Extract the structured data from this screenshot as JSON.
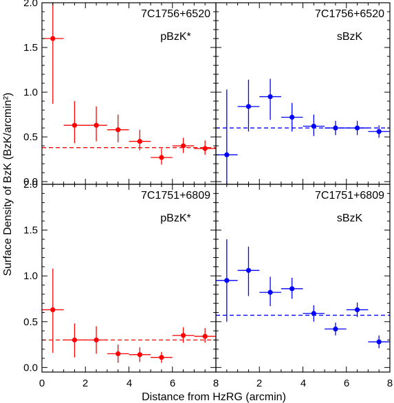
{
  "chart_data": {
    "type": "scatter",
    "xlabel": "Distance from HzRG (arcmin)",
    "ylabel": "Surface Density of BzK (BzK/arcmin²)",
    "xlim": [
      0,
      8
    ],
    "ylim": [
      -0.05,
      2.0
    ],
    "x_ticks": [
      0,
      2,
      4,
      6,
      8
    ],
    "y_ticks": [
      0.0,
      0.5,
      1.0,
      1.5,
      2.0
    ],
    "panels": [
      {
        "field": "7C1756+6520",
        "sample": "pBzK*",
        "color": "#ff0000",
        "ylim": [
          -0.03,
          2.0
        ],
        "reference_level": 0.38,
        "points": [
          {
            "x": 0.5,
            "y": 1.6,
            "xerr": 0.5,
            "yerr_low": 0.73,
            "yerr_high": 0.55
          },
          {
            "x": 1.5,
            "y": 0.63,
            "xerr": 0.5,
            "yerr_low": 0.2,
            "yerr_high": 0.27
          },
          {
            "x": 2.5,
            "y": 0.63,
            "xerr": 0.5,
            "yerr_low": 0.18,
            "yerr_high": 0.21
          },
          {
            "x": 3.5,
            "y": 0.58,
            "xerr": 0.5,
            "yerr_low": 0.14,
            "yerr_high": 0.17
          },
          {
            "x": 4.5,
            "y": 0.45,
            "xerr": 0.5,
            "yerr_low": 0.1,
            "yerr_high": 0.13
          },
          {
            "x": 5.5,
            "y": 0.27,
            "xerr": 0.5,
            "yerr_low": 0.08,
            "yerr_high": 0.1
          },
          {
            "x": 6.5,
            "y": 0.4,
            "xerr": 0.5,
            "yerr_low": 0.08,
            "yerr_high": 0.09
          },
          {
            "x": 7.5,
            "y": 0.37,
            "xerr": 0.5,
            "yerr_low": 0.07,
            "yerr_high": 0.09
          }
        ]
      },
      {
        "field": "7C1756+6520",
        "sample": "sBzK",
        "color": "#0000ff",
        "ylim": [
          -0.03,
          2.0
        ],
        "reference_level": 0.6,
        "points": [
          {
            "x": 0.5,
            "y": 0.3,
            "xerr": 0.5,
            "yerr_low": 0.33,
            "yerr_high": 0.73
          },
          {
            "x": 1.5,
            "y": 0.84,
            "xerr": 0.5,
            "yerr_low": 0.28,
            "yerr_high": 0.3
          },
          {
            "x": 2.5,
            "y": 0.95,
            "xerr": 0.5,
            "yerr_low": 0.26,
            "yerr_high": 0.2
          },
          {
            "x": 3.5,
            "y": 0.72,
            "xerr": 0.5,
            "yerr_low": 0.16,
            "yerr_high": 0.16
          },
          {
            "x": 4.5,
            "y": 0.62,
            "xerr": 0.5,
            "yerr_low": 0.11,
            "yerr_high": 0.13
          },
          {
            "x": 5.5,
            "y": 0.6,
            "xerr": 0.5,
            "yerr_low": 0.08,
            "yerr_high": 0.08
          },
          {
            "x": 6.5,
            "y": 0.6,
            "xerr": 0.5,
            "yerr_low": 0.08,
            "yerr_high": 0.08
          },
          {
            "x": 7.5,
            "y": 0.56,
            "xerr": 0.5,
            "yerr_low": 0.07,
            "yerr_high": 0.07
          }
        ]
      },
      {
        "field": "7C1751+6809",
        "sample": "pBzK*",
        "color": "#ff0000",
        "ylim": [
          -0.05,
          2.0
        ],
        "reference_level": 0.3,
        "points": [
          {
            "x": 0.5,
            "y": 0.63,
            "xerr": 0.5,
            "yerr_low": 0.47,
            "yerr_high": 0.45
          },
          {
            "x": 1.5,
            "y": 0.3,
            "xerr": 0.5,
            "yerr_low": 0.19,
            "yerr_high": 0.18
          },
          {
            "x": 2.5,
            "y": 0.3,
            "xerr": 0.5,
            "yerr_low": 0.15,
            "yerr_high": 0.15
          },
          {
            "x": 3.5,
            "y": 0.15,
            "xerr": 0.5,
            "yerr_low": 0.1,
            "yerr_high": 0.1
          },
          {
            "x": 4.5,
            "y": 0.14,
            "xerr": 0.5,
            "yerr_low": 0.08,
            "yerr_high": 0.08
          },
          {
            "x": 5.5,
            "y": 0.11,
            "xerr": 0.5,
            "yerr_low": 0.06,
            "yerr_high": 0.06
          },
          {
            "x": 6.5,
            "y": 0.35,
            "xerr": 0.5,
            "yerr_low": 0.08,
            "yerr_high": 0.09
          },
          {
            "x": 7.5,
            "y": 0.34,
            "xerr": 0.5,
            "yerr_low": 0.07,
            "yerr_high": 0.09
          }
        ]
      },
      {
        "field": "7C1751+6809",
        "sample": "sBzK",
        "color": "#0000ff",
        "ylim": [
          -0.05,
          2.0
        ],
        "reference_level": 0.57,
        "points": [
          {
            "x": 0.5,
            "y": 0.95,
            "xerr": 0.5,
            "yerr_low": 0.45,
            "yerr_high": 0.45
          },
          {
            "x": 1.5,
            "y": 1.06,
            "xerr": 0.5,
            "yerr_low": 0.28,
            "yerr_high": 0.26
          },
          {
            "x": 2.5,
            "y": 0.82,
            "xerr": 0.5,
            "yerr_low": 0.15,
            "yerr_high": 0.17
          },
          {
            "x": 3.5,
            "y": 0.86,
            "xerr": 0.5,
            "yerr_low": 0.11,
            "yerr_high": 0.12
          },
          {
            "x": 4.5,
            "y": 0.59,
            "xerr": 0.5,
            "yerr_low": 0.09,
            "yerr_high": 0.09
          },
          {
            "x": 5.5,
            "y": 0.42,
            "xerr": 0.5,
            "yerr_low": 0.07,
            "yerr_high": 0.07
          },
          {
            "x": 6.5,
            "y": 0.63,
            "xerr": 0.5,
            "yerr_low": 0.08,
            "yerr_high": 0.08
          },
          {
            "x": 7.5,
            "y": 0.28,
            "xerr": 0.5,
            "yerr_low": 0.07,
            "yerr_high": 0.07
          }
        ]
      }
    ]
  }
}
